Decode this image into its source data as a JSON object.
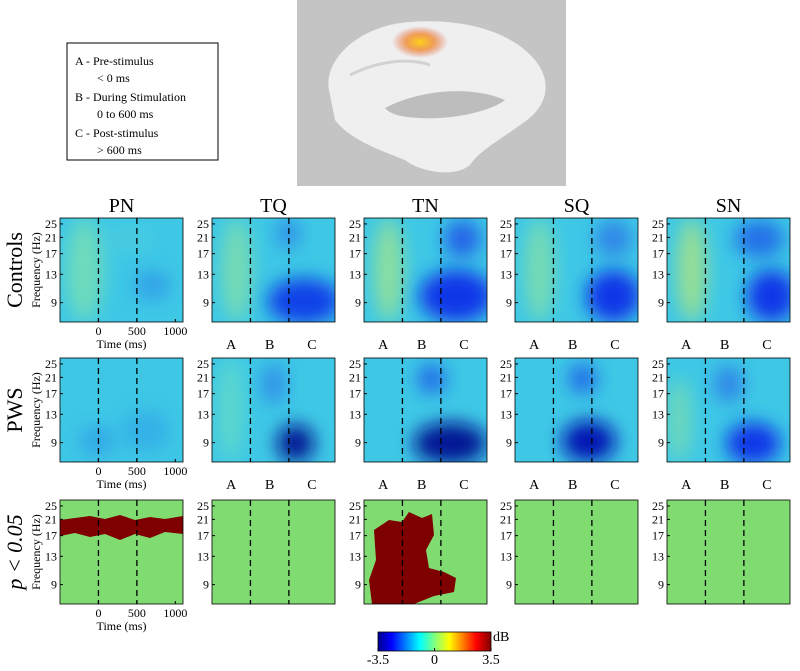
{
  "legend": {
    "lines": [
      "A - Pre-stimulus",
      "< 0 ms",
      "B - During Stimulation",
      "0 to 600 ms",
      "C - Post-stimulus",
      "> 600 ms"
    ]
  },
  "columns": [
    "PN",
    "TQ",
    "TN",
    "SQ",
    "SN"
  ],
  "rows": [
    "Controls",
    "PWS",
    "p < 0.05"
  ],
  "y_axis_label": "Frequency (Hz)",
  "x_axis_label": "Time (ms)",
  "yticks": [
    25,
    21,
    17,
    13,
    9
  ],
  "ylim": [
    7,
    27
  ],
  "log_y": true,
  "xticks": [
    0,
    500,
    1000
  ],
  "xlim": [
    -500,
    1100
  ],
  "phase_labels": [
    "A",
    "B",
    "C"
  ],
  "colorbar": {
    "unit": "dB",
    "lim": [
      -3.5,
      3.5
    ],
    "ticks": [
      -3.5,
      0,
      3.5
    ]
  }
}
